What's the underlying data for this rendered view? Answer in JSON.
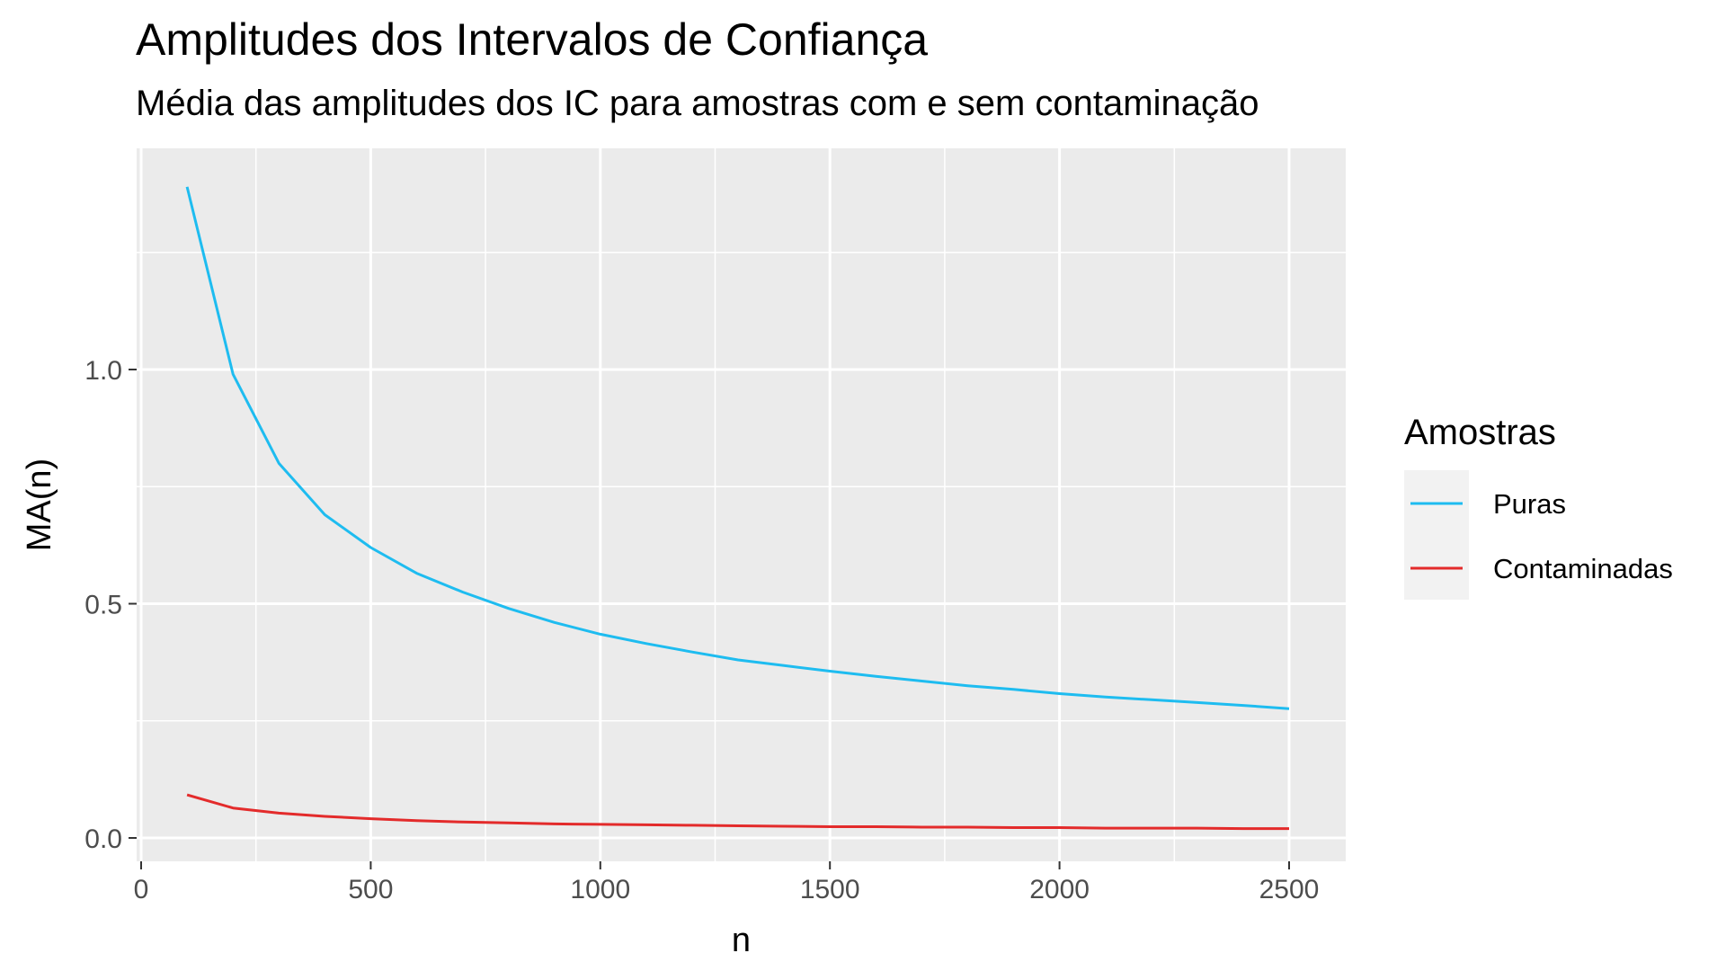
{
  "chart_data": {
    "type": "line",
    "title": "Amplitudes dos Intervalos de Confiança",
    "subtitle": "Média das amplitudes dos IC para amostras com e sem contaminação",
    "xlabel": "n",
    "ylabel": "MA(n)",
    "xlim": [
      0,
      2500
    ],
    "ylim": [
      0,
      1.4
    ],
    "x_ticks": [
      0,
      500,
      1000,
      1500,
      2000,
      2500
    ],
    "x_tick_labels": [
      "0",
      "500",
      "1000",
      "1500",
      "2000",
      "2500"
    ],
    "y_ticks": [
      0.0,
      0.5,
      1.0
    ],
    "y_tick_labels": [
      "0.0",
      "0.5",
      "1.0"
    ],
    "grid": true,
    "legend": {
      "title": "Amostras",
      "placement": "right"
    },
    "x": [
      100,
      200,
      300,
      400,
      500,
      600,
      700,
      800,
      900,
      1000,
      1100,
      1200,
      1300,
      1400,
      1500,
      1600,
      1700,
      1800,
      1900,
      2000,
      2100,
      2200,
      2300,
      2400,
      2500
    ],
    "series": [
      {
        "name": "Puras",
        "color": "#1ebcf0",
        "values": [
          1.39,
          0.99,
          0.8,
          0.69,
          0.62,
          0.565,
          0.525,
          0.49,
          0.46,
          0.435,
          0.415,
          0.397,
          0.38,
          0.368,
          0.356,
          0.345,
          0.335,
          0.325,
          0.317,
          0.308,
          0.301,
          0.295,
          0.289,
          0.283,
          0.276
        ]
      },
      {
        "name": "Contaminadas",
        "color": "#e32b2b",
        "values": [
          0.092,
          0.064,
          0.053,
          0.046,
          0.041,
          0.037,
          0.034,
          0.032,
          0.03,
          0.029,
          0.028,
          0.027,
          0.026,
          0.025,
          0.024,
          0.024,
          0.023,
          0.023,
          0.022,
          0.022,
          0.021,
          0.021,
          0.021,
          0.02,
          0.02
        ]
      }
    ]
  }
}
